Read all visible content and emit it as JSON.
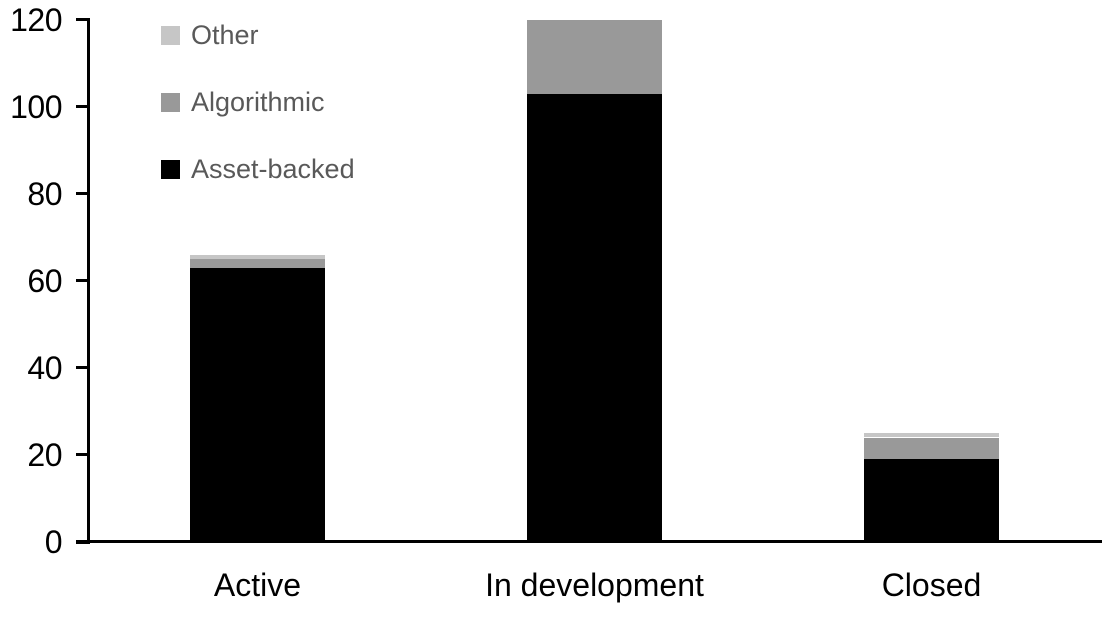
{
  "chart_data": {
    "type": "bar",
    "stacked": true,
    "title": "",
    "xlabel": "",
    "ylabel": "",
    "categories": [
      "Active",
      "In development",
      "Closed"
    ],
    "series": [
      {
        "name": "Asset-backed",
        "color": "#000000",
        "values": [
          63,
          103,
          19
        ]
      },
      {
        "name": "Algorithmic",
        "color": "#999999",
        "values": [
          2,
          17,
          5
        ]
      },
      {
        "name": "Other",
        "color": "#c6c6c6",
        "values": [
          1,
          0,
          1
        ]
      }
    ],
    "stack_totals": [
      66,
      120,
      25
    ],
    "ylim": [
      0,
      120
    ],
    "yticks": [
      0,
      20,
      40,
      60,
      80,
      100,
      120
    ],
    "grid": false,
    "legend_position": "top-left"
  },
  "legend": {
    "items": [
      {
        "label": "Other",
        "color": "#c6c6c6"
      },
      {
        "label": "Algorithmic",
        "color": "#999999"
      },
      {
        "label": "Asset-backed",
        "color": "#000000"
      }
    ]
  },
  "colors": {
    "axis": "#000000",
    "axis_text": "#000000",
    "legend_text": "#595959",
    "background": "#ffffff"
  }
}
